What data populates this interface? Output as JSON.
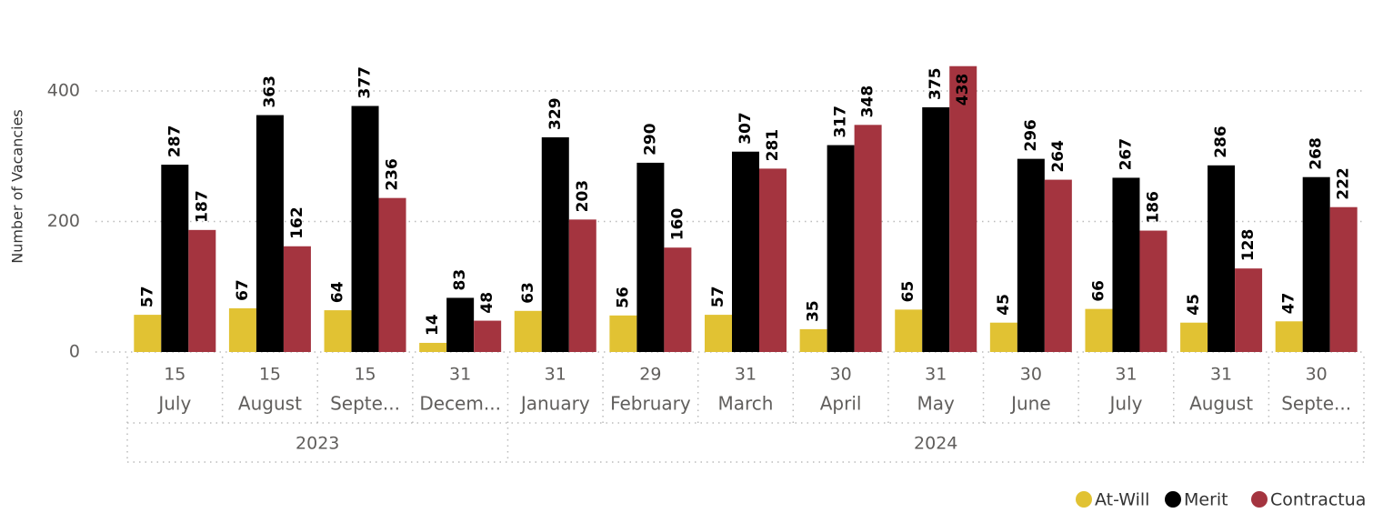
{
  "chart_data": {
    "type": "bar",
    "y_axis_label": "Number of Vacancies",
    "days": [
      "15",
      "15",
      "15",
      "31",
      "31",
      "29",
      "31",
      "30",
      "31",
      "30",
      "31",
      "31",
      "30"
    ],
    "categories": [
      "July",
      "August",
      "Septe...",
      "Decem...",
      "January",
      "February",
      "March",
      "April",
      "May",
      "June",
      "July",
      "August",
      "Septe..."
    ],
    "category_years": [
      "2023",
      "2023",
      "2023",
      "2023",
      "2024",
      "2024",
      "2024",
      "2024",
      "2024",
      "2024",
      "2024",
      "2024",
      "2024"
    ],
    "series": [
      {
        "name": "At-Will",
        "color": "#E1C233",
        "values": [
          57,
          67,
          64,
          14,
          63,
          56,
          57,
          35,
          65,
          45,
          66,
          45,
          47
        ]
      },
      {
        "name": "Merit",
        "color": "#000000",
        "values": [
          287,
          363,
          377,
          83,
          329,
          290,
          307,
          317,
          375,
          296,
          267,
          286,
          268
        ]
      },
      {
        "name": "Contractua",
        "color": "#A4343F",
        "values": [
          187,
          162,
          236,
          48,
          203,
          160,
          281,
          348,
          438,
          264,
          186,
          128,
          222
        ]
      }
    ],
    "ylim": [
      0,
      450
    ],
    "yticks": [
      0,
      200,
      400
    ],
    "grid": true,
    "legend": "bottom-right"
  }
}
